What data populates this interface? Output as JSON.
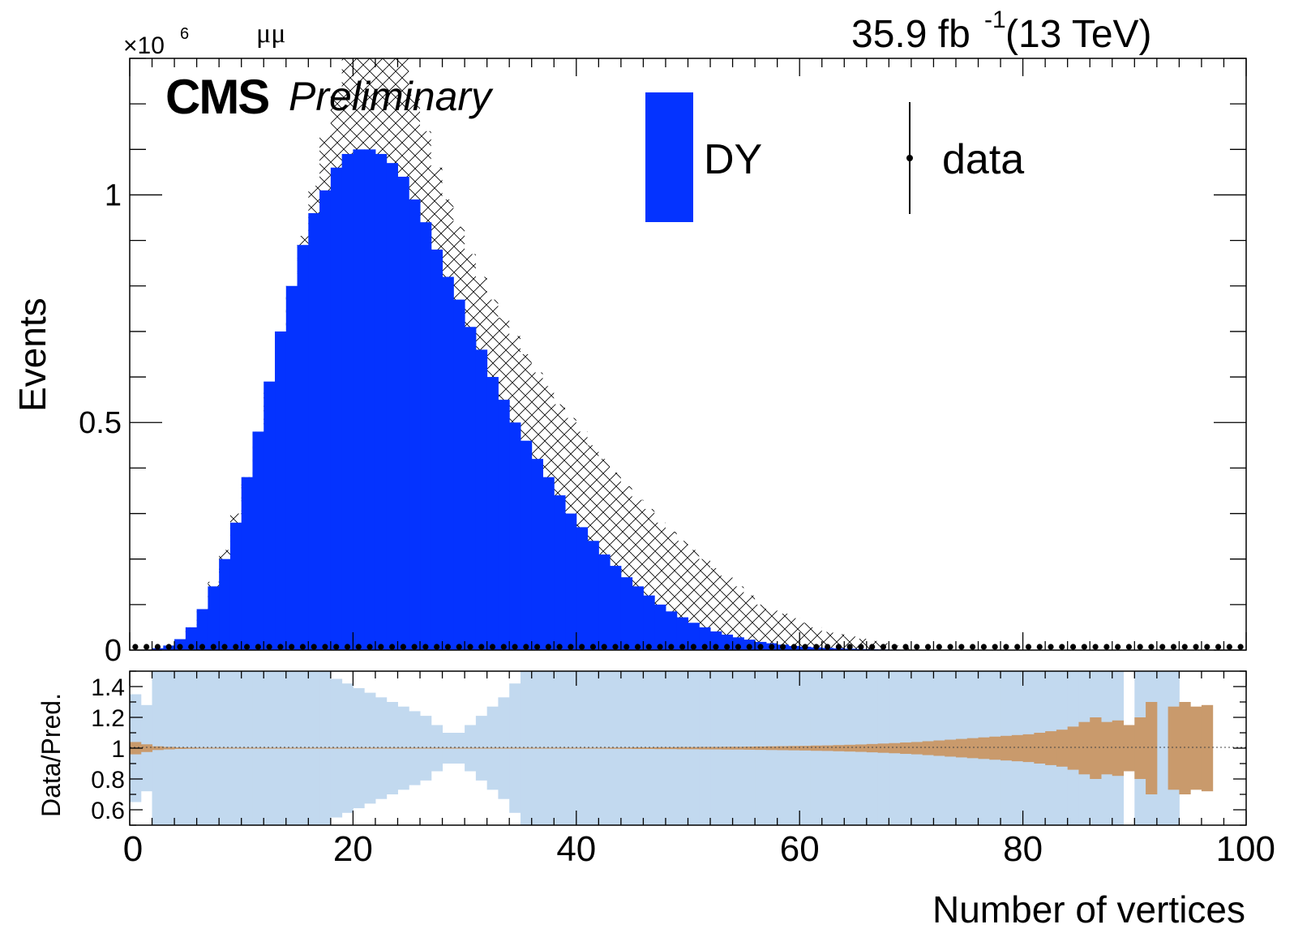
{
  "header": {
    "channel": "μμ",
    "lumi_value": "35.9 fb",
    "lumi_exp": "-1",
    "lumi_energy": " (13 TeV)",
    "cms": "CMS",
    "preliminary": "Preliminary",
    "multiplier_base": "×10",
    "multiplier_exp": "6"
  },
  "chart_data": {
    "type": "bar",
    "title": "",
    "xlabel": "Number of vertices",
    "ylabel": "Events",
    "ratio_ylabel": "Data/Pred.",
    "xlim": [
      0,
      100
    ],
    "ylim": [
      0,
      1.3
    ],
    "y_unit_multiplier": 1000000,
    "ratio_ylim": [
      0.5,
      1.5
    ],
    "x_ticks": [
      "0",
      "20",
      "40",
      "60",
      "80",
      "100"
    ],
    "y_ticks": [
      "0",
      "0.5",
      "1"
    ],
    "ratio_y_ticks": [
      "0.6",
      "0.8",
      "1",
      "1.2",
      "1.4"
    ],
    "legend_position": "top-right",
    "legend": [
      {
        "label": "DY",
        "style": "filled box"
      },
      {
        "label": "data",
        "style": "marker with error bar"
      }
    ],
    "colors": {
      "dy": "#0433ff",
      "stat_band": "#c2d9ef",
      "ratio_err": "#c99a6c",
      "hatch": "#000000"
    },
    "bin_width": 1,
    "series": [
      {
        "name": "DY",
        "x_low_edges": [
          0,
          1,
          2,
          3,
          4,
          5,
          6,
          7,
          8,
          9,
          10,
          11,
          12,
          13,
          14,
          15,
          16,
          17,
          18,
          19,
          20,
          21,
          22,
          23,
          24,
          25,
          26,
          27,
          28,
          29,
          30,
          31,
          32,
          33,
          34,
          35,
          36,
          37,
          38,
          39,
          40,
          41,
          42,
          43,
          44,
          45,
          46,
          47,
          48,
          49,
          50,
          51,
          52,
          53,
          54,
          55,
          56,
          57,
          58,
          59,
          60,
          61,
          62,
          63,
          64,
          65,
          66,
          67,
          68,
          69,
          70,
          71,
          72,
          73,
          74,
          75,
          76,
          77,
          78,
          79,
          80,
          81,
          82,
          83,
          84,
          85,
          86,
          87,
          88,
          89,
          90,
          91,
          92,
          93,
          94,
          95,
          96,
          97,
          98,
          99
        ],
        "values": [
          0.0005,
          0.001,
          0.004,
          0.01,
          0.024,
          0.05,
          0.09,
          0.14,
          0.2,
          0.28,
          0.38,
          0.48,
          0.59,
          0.7,
          0.8,
          0.89,
          0.96,
          1.01,
          1.06,
          1.09,
          1.1,
          1.1,
          1.09,
          1.07,
          1.04,
          0.99,
          0.94,
          0.88,
          0.82,
          0.77,
          0.71,
          0.66,
          0.6,
          0.55,
          0.5,
          0.46,
          0.42,
          0.38,
          0.34,
          0.3,
          0.27,
          0.24,
          0.21,
          0.185,
          0.16,
          0.14,
          0.12,
          0.1,
          0.085,
          0.072,
          0.06,
          0.05,
          0.041,
          0.034,
          0.028,
          0.023,
          0.018,
          0.015,
          0.012,
          0.009,
          0.0075,
          0.006,
          0.0048,
          0.0038,
          0.003,
          0.0023,
          0.0018,
          0.0014,
          0.0011,
          0.0009,
          0.0007,
          0.0005,
          0.0004,
          0.0003,
          0.00025,
          0.0002,
          0.00015,
          0.00012,
          0.0001,
          8e-05,
          6e-05,
          5e-05,
          4e-05,
          3e-05,
          2e-05,
          2e-05,
          1e-05,
          1e-05,
          0,
          0,
          0,
          0,
          0,
          0,
          0,
          0,
          0,
          0,
          0,
          0
        ]
      },
      {
        "name": "data",
        "x_centers": [
          0.5,
          1.5,
          2.5,
          3.5,
          4.5,
          5.5,
          6.5,
          7.5,
          8.5,
          9.5,
          10.5,
          11.5,
          12.5,
          13.5,
          14.5,
          15.5,
          16.5,
          17.5,
          18.5,
          19.5,
          20.5,
          21.5,
          22.5,
          23.5,
          24.5,
          25.5,
          26.5,
          27.5,
          28.5,
          29.5,
          30.5,
          31.5,
          32.5,
          33.5,
          34.5,
          35.5,
          36.5,
          37.5,
          38.5,
          39.5,
          40.5,
          41.5,
          42.5,
          43.5,
          44.5,
          45.5,
          46.5,
          47.5,
          48.5,
          49.5,
          50.5,
          51.5,
          52.5,
          53.5,
          54.5,
          55.5,
          56.5,
          57.5,
          58.5,
          59.5,
          60.5,
          61.5,
          62.5,
          63.5,
          64.5,
          65.5,
          66.5,
          67.5,
          68.5,
          69.5,
          70.5,
          71.5,
          72.5,
          73.5,
          74.5,
          75.5,
          76.5,
          77.5,
          78.5,
          79.5,
          80.5,
          81.5,
          82.5,
          83.5,
          84.5,
          85.5,
          86.5,
          87.5,
          88.5,
          89.5,
          90.5,
          91.5,
          92.5,
          93.5,
          94.5,
          95.5,
          96.5,
          97.5,
          98.5,
          99.5
        ],
        "values": [
          0,
          0,
          0,
          0,
          0,
          0,
          0,
          0,
          0,
          0,
          0,
          0,
          0,
          0,
          0,
          0,
          0,
          0,
          0,
          0,
          0,
          0,
          0,
          0,
          0,
          0,
          0,
          0,
          0,
          0,
          0,
          0,
          0,
          0,
          0,
          0,
          0,
          0,
          0,
          0,
          0,
          0,
          0,
          0,
          0,
          0,
          0,
          0,
          0,
          0,
          0,
          0,
          0,
          0,
          0,
          0,
          0,
          0,
          0,
          0,
          0,
          0,
          0,
          0,
          0,
          0,
          0,
          0,
          0,
          0,
          0,
          0,
          0,
          0,
          0,
          0,
          0,
          0,
          0,
          0,
          0,
          0,
          0,
          0,
          0,
          0,
          0,
          0,
          0,
          0,
          0,
          0,
          0,
          0,
          0,
          0,
          0,
          0,
          0,
          0
        ]
      },
      {
        "name": "systematic uncertainty (hatched)",
        "x_low_edges": [
          4,
          5,
          6,
          7,
          8,
          9,
          10,
          11,
          12,
          13,
          14,
          15,
          16,
          17,
          18,
          19,
          20,
          21,
          22,
          23,
          24,
          25,
          26,
          27,
          28,
          29,
          30,
          31,
          32,
          33,
          34,
          35,
          36,
          37,
          38,
          39,
          40,
          41,
          42,
          43,
          44,
          45,
          46,
          47,
          48,
          49,
          50,
          51,
          52,
          53,
          54,
          55,
          56,
          57,
          58,
          59,
          60,
          61,
          62,
          63,
          64,
          65,
          66,
          67,
          68,
          69
        ],
        "upper": [
          0.02,
          0.05,
          0.09,
          0.15,
          0.22,
          0.3,
          0.38,
          0.48,
          0.58,
          0.68,
          0.8,
          0.91,
          1.02,
          1.13,
          1.23,
          1.33,
          1.4,
          1.45,
          1.45,
          1.38,
          1.3,
          1.22,
          1.14,
          1.06,
          0.99,
          0.93,
          0.87,
          0.82,
          0.77,
          0.73,
          0.69,
          0.65,
          0.61,
          0.58,
          0.54,
          0.51,
          0.48,
          0.45,
          0.42,
          0.39,
          0.36,
          0.33,
          0.31,
          0.28,
          0.26,
          0.24,
          0.22,
          0.2,
          0.18,
          0.16,
          0.14,
          0.12,
          0.1,
          0.09,
          0.08,
          0.07,
          0.06,
          0.05,
          0.04,
          0.035,
          0.03,
          0.025,
          0.02,
          0.015,
          0.01,
          0.005
        ]
      }
    ],
    "ratio": {
      "x_low_edges": [
        0,
        1,
        2,
        3,
        4,
        5,
        6,
        7,
        8,
        9,
        10,
        11,
        12,
        13,
        14,
        15,
        16,
        17,
        18,
        19,
        20,
        21,
        22,
        23,
        24,
        25,
        26,
        27,
        28,
        29,
        30,
        31,
        32,
        33,
        34,
        35,
        36,
        37,
        38,
        39,
        40,
        41,
        42,
        43,
        44,
        45,
        46,
        47,
        48,
        49,
        50,
        51,
        52,
        53,
        54,
        55,
        56,
        57,
        58,
        59,
        60,
        61,
        62,
        63,
        64,
        65,
        66,
        67,
        68,
        69,
        70,
        71,
        72,
        73,
        74,
        75,
        76,
        77,
        78,
        79,
        80,
        81,
        82,
        83,
        84,
        85,
        86,
        87,
        88,
        89,
        90,
        91,
        92,
        93,
        94,
        95,
        96,
        97,
        98,
        99
      ],
      "band_half_width": [
        0.35,
        0.28,
        0.6,
        0.6,
        0.6,
        0.6,
        0.6,
        0.6,
        0.6,
        0.6,
        0.6,
        0.6,
        0.6,
        0.6,
        0.6,
        0.6,
        0.6,
        0.6,
        0.45,
        0.42,
        0.39,
        0.36,
        0.33,
        0.3,
        0.27,
        0.24,
        0.21,
        0.15,
        0.1,
        0.1,
        0.15,
        0.21,
        0.27,
        0.33,
        0.42,
        0.6,
        0.6,
        0.6,
        0.6,
        0.6,
        0.6,
        0.6,
        0.6,
        0.6,
        0.6,
        0.6,
        0.6,
        0.6,
        0.6,
        0.6,
        0.6,
        0.6,
        0.6,
        0.6,
        0.6,
        0.6,
        0.6,
        0.6,
        0.6,
        0.6,
        0.6,
        0.6,
        0.6,
        0.6,
        0.6,
        0.6,
        0.6,
        0.6,
        0.6,
        0.6,
        0.6,
        0.6,
        0.6,
        0.6,
        0.6,
        0.6,
        0.6,
        0.6,
        0.6,
        0.6,
        0.6,
        0.6,
        0.6,
        0.6,
        0.6,
        0.6,
        0.6,
        0.6,
        0.6,
        0,
        0.6,
        0.6,
        0.6,
        0.6,
        0,
        0,
        0,
        0,
        0,
        0
      ],
      "err_half_width": [
        0.04,
        0.025,
        0.012,
        0.008,
        0.005,
        0.004,
        0.003,
        0.003,
        0.003,
        0.003,
        0.003,
        0.003,
        0.003,
        0.003,
        0.003,
        0.003,
        0.003,
        0.003,
        0.003,
        0.003,
        0.003,
        0.003,
        0.003,
        0.003,
        0.003,
        0.003,
        0.003,
        0.003,
        0.003,
        0.003,
        0.003,
        0.003,
        0.003,
        0.003,
        0.003,
        0.003,
        0.003,
        0.003,
        0.003,
        0.003,
        0.003,
        0.003,
        0.003,
        0.004,
        0.004,
        0.005,
        0.005,
        0.006,
        0.006,
        0.007,
        0.007,
        0.008,
        0.008,
        0.009,
        0.009,
        0.01,
        0.011,
        0.012,
        0.013,
        0.014,
        0.015,
        0.017,
        0.018,
        0.02,
        0.022,
        0.024,
        0.027,
        0.03,
        0.033,
        0.037,
        0.04,
        0.045,
        0.05,
        0.055,
        0.06,
        0.065,
        0.07,
        0.075,
        0.08,
        0.085,
        0.09,
        0.1,
        0.11,
        0.12,
        0.14,
        0.17,
        0.2,
        0.17,
        0.18,
        0.15,
        0.2,
        0.3,
        0,
        0.27,
        0.3,
        0.27,
        0.28,
        0,
        0,
        0,
        0,
        0
      ]
    }
  }
}
